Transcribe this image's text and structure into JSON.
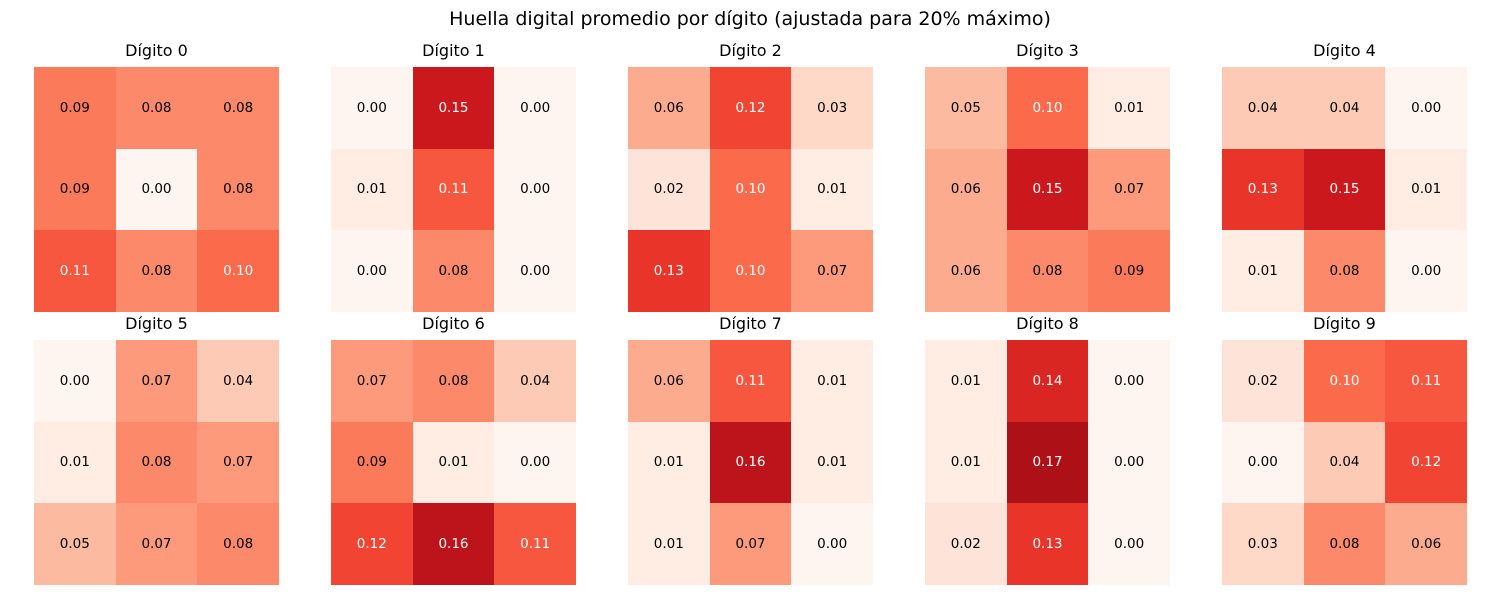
{
  "chart_data": {
    "type": "heatmap",
    "title": "Huella digital promedio por dígito (ajustada para 20% máximo)",
    "colormap": "Reds",
    "vmin": 0.0,
    "vmax": 0.2,
    "panels": [
      {
        "title": "Dígito 0",
        "values": [
          [
            0.09,
            0.08,
            0.08
          ],
          [
            0.09,
            0.0,
            0.08
          ],
          [
            0.11,
            0.08,
            0.1
          ]
        ],
        "labels": [
          [
            "0.09",
            "0.08",
            "0.08"
          ],
          [
            "0.09",
            "0.00",
            "0.08"
          ],
          [
            "0.11",
            "0.08",
            "0.10"
          ]
        ]
      },
      {
        "title": "Dígito 1",
        "values": [
          [
            0.0,
            0.15,
            0.0
          ],
          [
            0.01,
            0.11,
            0.0
          ],
          [
            0.0,
            0.08,
            0.0
          ]
        ],
        "labels": [
          [
            "0.00",
            "0.15",
            "0.00"
          ],
          [
            "0.01",
            "0.11",
            "0.00"
          ],
          [
            "0.00",
            "0.08",
            "0.00"
          ]
        ]
      },
      {
        "title": "Dígito 2",
        "values": [
          [
            0.06,
            0.12,
            0.03
          ],
          [
            0.02,
            0.1,
            0.01
          ],
          [
            0.13,
            0.1,
            0.07
          ]
        ],
        "labels": [
          [
            "0.06",
            "0.12",
            "0.03"
          ],
          [
            "0.02",
            "0.10",
            "0.01"
          ],
          [
            "0.13",
            "0.10",
            "0.07"
          ]
        ]
      },
      {
        "title": "Dígito 3",
        "values": [
          [
            0.05,
            0.1,
            0.01
          ],
          [
            0.06,
            0.15,
            0.07
          ],
          [
            0.06,
            0.08,
            0.09
          ]
        ],
        "labels": [
          [
            "0.05",
            "0.10",
            "0.01"
          ],
          [
            "0.06",
            "0.15",
            "0.07"
          ],
          [
            "0.06",
            "0.08",
            "0.09"
          ]
        ]
      },
      {
        "title": "Dígito 4",
        "values": [
          [
            0.04,
            0.04,
            0.0
          ],
          [
            0.13,
            0.15,
            0.01
          ],
          [
            0.01,
            0.08,
            0.0
          ]
        ],
        "labels": [
          [
            "0.04",
            "0.04",
            "0.00"
          ],
          [
            "0.13",
            "0.15",
            "0.01"
          ],
          [
            "0.01",
            "0.08",
            "0.00"
          ]
        ]
      },
      {
        "title": "Dígito 5",
        "values": [
          [
            0.0,
            0.07,
            0.04
          ],
          [
            0.01,
            0.08,
            0.07
          ],
          [
            0.05,
            0.07,
            0.08
          ]
        ],
        "labels": [
          [
            "0.00",
            "0.07",
            "0.04"
          ],
          [
            "0.01",
            "0.08",
            "0.07"
          ],
          [
            "0.05",
            "0.07",
            "0.08"
          ]
        ]
      },
      {
        "title": "Dígito 6",
        "values": [
          [
            0.07,
            0.08,
            0.04
          ],
          [
            0.09,
            0.01,
            0.0
          ],
          [
            0.12,
            0.16,
            0.11
          ]
        ],
        "labels": [
          [
            "0.07",
            "0.08",
            "0.04"
          ],
          [
            "0.09",
            "0.01",
            "0.00"
          ],
          [
            "0.12",
            "0.16",
            "0.11"
          ]
        ]
      },
      {
        "title": "Dígito 7",
        "values": [
          [
            0.06,
            0.11,
            0.01
          ],
          [
            0.01,
            0.16,
            0.01
          ],
          [
            0.01,
            0.07,
            0.0
          ]
        ],
        "labels": [
          [
            "0.06",
            "0.11",
            "0.01"
          ],
          [
            "0.01",
            "0.16",
            "0.01"
          ],
          [
            "0.01",
            "0.07",
            "0.00"
          ]
        ]
      },
      {
        "title": "Dígito 8",
        "values": [
          [
            0.01,
            0.14,
            0.0
          ],
          [
            0.01,
            0.17,
            0.0
          ],
          [
            0.02,
            0.13,
            0.0
          ]
        ],
        "labels": [
          [
            "0.01",
            "0.14",
            "0.00"
          ],
          [
            "0.01",
            "0.17",
            "0.00"
          ],
          [
            "0.02",
            "0.13",
            "0.00"
          ]
        ]
      },
      {
        "title": "Dígito 9",
        "values": [
          [
            0.02,
            0.1,
            0.11
          ],
          [
            0.0,
            0.04,
            0.12
          ],
          [
            0.03,
            0.08,
            0.06
          ]
        ],
        "labels": [
          [
            "0.02",
            "0.10",
            "0.11"
          ],
          [
            "0.00",
            "0.04",
            "0.12"
          ],
          [
            "0.03",
            "0.08",
            "0.06"
          ]
        ]
      }
    ]
  }
}
